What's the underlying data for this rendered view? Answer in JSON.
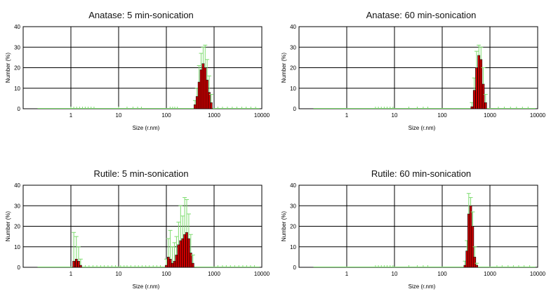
{
  "chart_data": [
    {
      "type": "bar",
      "title": "Anatase: 5 min-sonication",
      "xlabel": "Size (r.nm)",
      "ylabel": "Number (%)",
      "x_scale": "log",
      "xlim": [
        0.1,
        10000
      ],
      "ylim": [
        0,
        40
      ],
      "x_ticks": [
        "1",
        "10",
        "100",
        "1000",
        "10000"
      ],
      "y_ticks": [
        "0",
        "10",
        "20",
        "30",
        "40"
      ],
      "grid": true,
      "colors": {
        "bar": "#cc0000",
        "bar_edge": "#000000",
        "error_bar": "#7ddc6e",
        "grid": "#000000"
      },
      "bins": [
        {
          "x": 400,
          "y": 2,
          "err": 4
        },
        {
          "x": 440,
          "y": 6,
          "err": 10
        },
        {
          "x": 485,
          "y": 13,
          "err": 21
        },
        {
          "x": 535,
          "y": 19,
          "err": 27
        },
        {
          "x": 590,
          "y": 22,
          "err": 30
        },
        {
          "x": 650,
          "y": 20,
          "err": 31
        },
        {
          "x": 715,
          "y": 14,
          "err": 24
        },
        {
          "x": 790,
          "y": 8,
          "err": 16
        },
        {
          "x": 870,
          "y": 3,
          "err": 7
        }
      ],
      "baseline_markers": [
        1,
        1.15,
        1.32,
        1.52,
        1.75,
        2.0,
        2.3,
        2.65,
        3.05,
        10,
        15,
        20,
        25,
        30,
        120,
        135,
        150,
        170,
        1200,
        1500,
        1900,
        2400,
        3000,
        3800,
        4700,
        5900,
        7400
      ]
    },
    {
      "type": "bar",
      "title": "Anatase: 60 min-sonication",
      "xlabel": "Size (r.nm)",
      "ylabel": "Number (%)",
      "x_scale": "log",
      "xlim": [
        0.1,
        10000
      ],
      "ylim": [
        0,
        40
      ],
      "x_ticks": [
        "1",
        "10",
        "100",
        "1000",
        "10000"
      ],
      "y_ticks": [
        "0",
        "10",
        "20",
        "30",
        "40"
      ],
      "grid": true,
      "colors": {
        "bar": "#cc0000",
        "bar_edge": "#000000",
        "error_bar": "#7ddc6e",
        "grid": "#000000"
      },
      "bins": [
        {
          "x": 420,
          "y": 1,
          "err": 3
        },
        {
          "x": 470,
          "y": 9,
          "err": 15
        },
        {
          "x": 525,
          "y": 20,
          "err": 28
        },
        {
          "x": 585,
          "y": 26,
          "err": 31
        },
        {
          "x": 650,
          "y": 24,
          "err": 30
        },
        {
          "x": 725,
          "y": 12,
          "err": 20
        },
        {
          "x": 810,
          "y": 3,
          "err": 7
        }
      ],
      "baseline_markers": [
        4,
        4.6,
        5.3,
        6.1,
        7.0,
        8.1,
        9.3,
        20,
        30,
        40,
        50,
        1500,
        2000,
        2700,
        3600,
        4800,
        6300
      ]
    },
    {
      "type": "bar",
      "title": "Rutile: 5 min-sonication",
      "xlabel": "Size (r.nm)",
      "ylabel": "Number (%)",
      "x_scale": "log",
      "xlim": [
        0.1,
        10000
      ],
      "ylim": [
        0,
        40
      ],
      "x_ticks": [
        "1",
        "10",
        "100",
        "1000",
        "10000"
      ],
      "y_ticks": [
        "0",
        "10",
        "20",
        "30",
        "40"
      ],
      "grid": true,
      "colors": {
        "bar": "#cc0000",
        "bar_edge": "#000000",
        "error_bar": "#7ddc6e",
        "grid": "#000000"
      },
      "bins": [
        {
          "x": 1.15,
          "y": 3,
          "err": 17
        },
        {
          "x": 1.3,
          "y": 4,
          "err": 15
        },
        {
          "x": 1.45,
          "y": 3,
          "err": 10
        },
        {
          "x": 1.6,
          "y": 1,
          "err": 4
        },
        {
          "x": 100,
          "y": 1,
          "err": 4
        },
        {
          "x": 110,
          "y": 5,
          "err": 14
        },
        {
          "x": 121,
          "y": 4,
          "err": 18
        },
        {
          "x": 134,
          "y": 2,
          "err": 10
        },
        {
          "x": 148,
          "y": 3,
          "err": 12
        },
        {
          "x": 163,
          "y": 6,
          "err": 15
        },
        {
          "x": 180,
          "y": 11,
          "err": 22
        },
        {
          "x": 199,
          "y": 13,
          "err": 30
        },
        {
          "x": 220,
          "y": 14,
          "err": 25
        },
        {
          "x": 242,
          "y": 16,
          "err": 34
        },
        {
          "x": 267,
          "y": 17,
          "err": 33
        },
        {
          "x": 295,
          "y": 14,
          "err": 26
        },
        {
          "x": 325,
          "y": 7,
          "err": 16
        },
        {
          "x": 360,
          "y": 2,
          "err": 6
        }
      ],
      "baseline_markers": [
        2.0,
        2.4,
        2.9,
        3.5,
        4.2,
        5.0,
        6.0,
        7.2,
        8.6,
        11,
        13,
        15,
        18,
        22,
        26,
        31,
        37,
        44,
        53,
        63,
        75,
        1200,
        1500,
        1800,
        2200,
        2700,
        3300,
        4000,
        4800,
        5800,
        7000
      ]
    },
    {
      "type": "bar",
      "title": "Rutile: 60 min-sonication",
      "xlabel": "Size (r.nm)",
      "ylabel": "Number (%)",
      "x_scale": "log",
      "xlim": [
        0.1,
        10000
      ],
      "ylim": [
        0,
        40
      ],
      "x_ticks": [
        "1",
        "10",
        "100",
        "1000",
        "10000"
      ],
      "y_ticks": [
        "0",
        "10",
        "20",
        "30",
        "40"
      ],
      "grid": true,
      "colors": {
        "bar": "#cc0000",
        "bar_edge": "#000000",
        "error_bar": "#7ddc6e",
        "grid": "#000000"
      },
      "bins": [
        {
          "x": 300,
          "y": 1,
          "err": 3
        },
        {
          "x": 330,
          "y": 8,
          "err": 13
        },
        {
          "x": 360,
          "y": 26,
          "err": 36
        },
        {
          "x": 395,
          "y": 30,
          "err": 34
        },
        {
          "x": 435,
          "y": 20,
          "err": 27
        },
        {
          "x": 480,
          "y": 5,
          "err": 10
        },
        {
          "x": 530,
          "y": 1,
          "err": 2
        }
      ],
      "baseline_markers": [
        4,
        4.6,
        5.3,
        6.1,
        7.0,
        8.1,
        9.3,
        20,
        30,
        40,
        50,
        1400,
        1800,
        2400,
        3100,
        4000,
        5200,
        6800
      ]
    }
  ]
}
